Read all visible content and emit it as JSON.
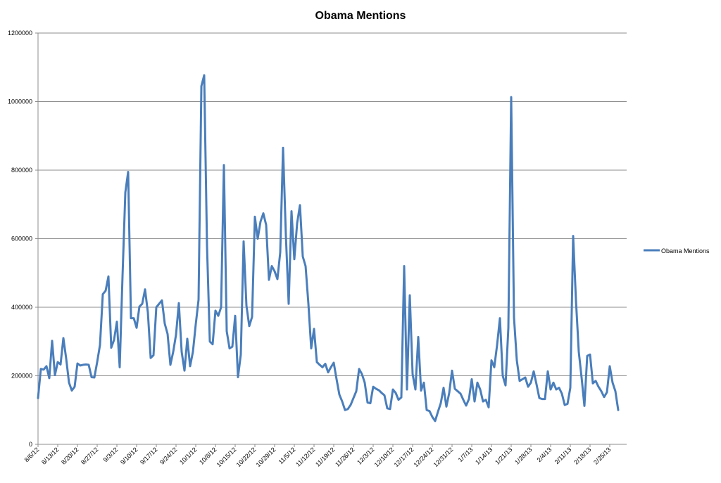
{
  "chart_data": {
    "type": "line",
    "title": "Obama Mentions",
    "xlabel": "",
    "ylabel": "",
    "ylim": [
      0,
      1200000
    ],
    "y_ticks": [
      0,
      200000,
      400000,
      600000,
      800000,
      1000000,
      1200000
    ],
    "y_tick_labels": [
      "0",
      "200000",
      "400000",
      "600000",
      "800000",
      "1000000",
      "1200000"
    ],
    "x_range": [
      "2012-08-06",
      "2013-03-03"
    ],
    "x_tick_dates": [
      "2012-08-06",
      "2012-08-13",
      "2012-08-20",
      "2012-08-27",
      "2012-09-03",
      "2012-09-10",
      "2012-09-17",
      "2012-09-24",
      "2012-10-01",
      "2012-10-08",
      "2012-10-15",
      "2012-10-22",
      "2012-10-29",
      "2012-11-05",
      "2012-11-12",
      "2012-11-19",
      "2012-11-26",
      "2012-12-03",
      "2012-12-10",
      "2012-12-17",
      "2012-12-24",
      "2012-12-31",
      "2013-01-07",
      "2013-01-14",
      "2013-01-21",
      "2013-01-28",
      "2013-02-04",
      "2013-02-11",
      "2013-02-18",
      "2013-02-25"
    ],
    "x_tick_labels": [
      "8/6/12",
      "8/13/12",
      "8/20/12",
      "8/27/12",
      "9/3/12",
      "9/10/12",
      "9/17/12",
      "9/24/12",
      "10/1/12",
      "10/8/12",
      "10/15/12",
      "10/22/12",
      "10/29/12",
      "11/5/12",
      "11/12/12",
      "11/19/12",
      "11/26/12",
      "12/3/12",
      "12/10/12",
      "12/17/12",
      "12/24/12",
      "12/31/12",
      "1/7/13",
      "1/14/13",
      "1/21/13",
      "1/28/13",
      "2/4/13",
      "2/11/13",
      "2/18/13",
      "2/25/13"
    ],
    "grid": "horizontal",
    "legend": "right",
    "series": [
      {
        "name": "Obama Mentions",
        "color": "#4a7ebb",
        "points": [
          [
            "2012-08-06",
            135000
          ],
          [
            "2012-08-07",
            220000
          ],
          [
            "2012-08-08",
            218000
          ],
          [
            "2012-08-09",
            228000
          ],
          [
            "2012-08-10",
            193000
          ],
          [
            "2012-08-11",
            302000
          ],
          [
            "2012-08-12",
            202000
          ],
          [
            "2012-08-13",
            240000
          ],
          [
            "2012-08-14",
            233000
          ],
          [
            "2012-08-15",
            310000
          ],
          [
            "2012-08-16",
            250000
          ],
          [
            "2012-08-17",
            180000
          ],
          [
            "2012-08-18",
            157000
          ],
          [
            "2012-08-19",
            168000
          ],
          [
            "2012-08-20",
            236000
          ],
          [
            "2012-08-21",
            230000
          ],
          [
            "2012-08-22",
            232000
          ],
          [
            "2012-08-23",
            233000
          ],
          [
            "2012-08-24",
            232000
          ],
          [
            "2012-08-25",
            196000
          ],
          [
            "2012-08-26",
            195000
          ],
          [
            "2012-08-27",
            240000
          ],
          [
            "2012-08-28",
            290000
          ],
          [
            "2012-08-29",
            438000
          ],
          [
            "2012-08-30",
            448000
          ],
          [
            "2012-08-31",
            490000
          ],
          [
            "2012-09-01",
            282000
          ],
          [
            "2012-09-02",
            305000
          ],
          [
            "2012-09-03",
            358000
          ],
          [
            "2012-09-04",
            225000
          ],
          [
            "2012-09-05",
            490000
          ],
          [
            "2012-09-06",
            735000
          ],
          [
            "2012-09-07",
            795000
          ],
          [
            "2012-09-08",
            368000
          ],
          [
            "2012-09-09",
            368000
          ],
          [
            "2012-09-10",
            340000
          ],
          [
            "2012-09-11",
            402000
          ],
          [
            "2012-09-12",
            410000
          ],
          [
            "2012-09-13",
            452000
          ],
          [
            "2012-09-14",
            385000
          ],
          [
            "2012-09-15",
            252000
          ],
          [
            "2012-09-16",
            260000
          ],
          [
            "2012-09-17",
            400000
          ],
          [
            "2012-09-18",
            410000
          ],
          [
            "2012-09-19",
            420000
          ],
          [
            "2012-09-20",
            352000
          ],
          [
            "2012-09-21",
            322000
          ],
          [
            "2012-09-22",
            232000
          ],
          [
            "2012-09-23",
            270000
          ],
          [
            "2012-09-24",
            320000
          ],
          [
            "2012-09-25",
            412000
          ],
          [
            "2012-09-26",
            270000
          ],
          [
            "2012-09-27",
            215000
          ],
          [
            "2012-09-28",
            308000
          ],
          [
            "2012-09-29",
            228000
          ],
          [
            "2012-09-30",
            270000
          ],
          [
            "2012-10-01",
            350000
          ],
          [
            "2012-10-02",
            422000
          ],
          [
            "2012-10-03",
            1045000
          ],
          [
            "2012-10-04",
            1077000
          ],
          [
            "2012-10-05",
            580000
          ],
          [
            "2012-10-06",
            300000
          ],
          [
            "2012-10-07",
            292000
          ],
          [
            "2012-10-08",
            390000
          ],
          [
            "2012-10-09",
            375000
          ],
          [
            "2012-10-10",
            400000
          ],
          [
            "2012-10-11",
            815000
          ],
          [
            "2012-10-12",
            330000
          ],
          [
            "2012-10-13",
            280000
          ],
          [
            "2012-10-14",
            285000
          ],
          [
            "2012-10-15",
            375000
          ],
          [
            "2012-10-16",
            196000
          ],
          [
            "2012-10-17",
            262000
          ],
          [
            "2012-10-18",
            592000
          ],
          [
            "2012-10-19",
            405000
          ],
          [
            "2012-10-20",
            345000
          ],
          [
            "2012-10-21",
            372000
          ],
          [
            "2012-10-22",
            664000
          ],
          [
            "2012-10-23",
            600000
          ],
          [
            "2012-10-24",
            650000
          ],
          [
            "2012-10-25",
            674000
          ],
          [
            "2012-10-26",
            640000
          ],
          [
            "2012-10-27",
            480000
          ],
          [
            "2012-10-28",
            520000
          ],
          [
            "2012-10-29",
            505000
          ],
          [
            "2012-10-30",
            482000
          ],
          [
            "2012-10-31",
            560000
          ],
          [
            "2012-11-01",
            865000
          ],
          [
            "2012-11-02",
            610000
          ],
          [
            "2012-11-03",
            410000
          ],
          [
            "2012-11-04",
            680000
          ],
          [
            "2012-11-05",
            540000
          ],
          [
            "2012-11-06",
            645000
          ],
          [
            "2012-11-07",
            698000
          ],
          [
            "2012-11-08",
            548000
          ],
          [
            "2012-11-09",
            520000
          ],
          [
            "2012-11-10",
            410000
          ],
          [
            "2012-11-11",
            280000
          ],
          [
            "2012-11-12",
            337000
          ],
          [
            "2012-11-13",
            240000
          ],
          [
            "2012-11-14",
            232000
          ],
          [
            "2012-11-15",
            225000
          ],
          [
            "2012-11-16",
            235000
          ],
          [
            "2012-11-17",
            210000
          ],
          [
            "2012-11-18",
            225000
          ],
          [
            "2012-11-19",
            238000
          ],
          [
            "2012-11-20",
            190000
          ],
          [
            "2012-11-21",
            145000
          ],
          [
            "2012-11-22",
            125000
          ],
          [
            "2012-11-23",
            100000
          ],
          [
            "2012-11-24",
            103000
          ],
          [
            "2012-11-25",
            115000
          ],
          [
            "2012-11-26",
            135000
          ],
          [
            "2012-11-27",
            155000
          ],
          [
            "2012-11-28",
            220000
          ],
          [
            "2012-11-29",
            205000
          ],
          [
            "2012-11-30",
            180000
          ],
          [
            "2012-12-01",
            122000
          ],
          [
            "2012-12-02",
            120000
          ],
          [
            "2012-12-03",
            168000
          ],
          [
            "2012-12-04",
            162000
          ],
          [
            "2012-12-05",
            158000
          ],
          [
            "2012-12-06",
            150000
          ],
          [
            "2012-12-07",
            143000
          ],
          [
            "2012-12-08",
            105000
          ],
          [
            "2012-12-09",
            103000
          ],
          [
            "2012-12-10",
            160000
          ],
          [
            "2012-12-11",
            150000
          ],
          [
            "2012-12-12",
            130000
          ],
          [
            "2012-12-13",
            137000
          ],
          [
            "2012-12-14",
            520000
          ],
          [
            "2012-12-15",
            160000
          ],
          [
            "2012-12-16",
            435000
          ],
          [
            "2012-12-17",
            205000
          ],
          [
            "2012-12-18",
            160000
          ],
          [
            "2012-12-19",
            313000
          ],
          [
            "2012-12-20",
            157000
          ],
          [
            "2012-12-21",
            180000
          ],
          [
            "2012-12-22",
            100000
          ],
          [
            "2012-12-23",
            97000
          ],
          [
            "2012-12-24",
            80000
          ],
          [
            "2012-12-25",
            68000
          ],
          [
            "2012-12-26",
            95000
          ],
          [
            "2012-12-27",
            120000
          ],
          [
            "2012-12-28",
            165000
          ],
          [
            "2012-12-29",
            110000
          ],
          [
            "2012-12-30",
            150000
          ],
          [
            "2012-12-31",
            215000
          ],
          [
            "2013-01-01",
            162000
          ],
          [
            "2013-01-02",
            155000
          ],
          [
            "2013-01-03",
            148000
          ],
          [
            "2013-01-04",
            130000
          ],
          [
            "2013-01-05",
            113000
          ],
          [
            "2013-01-06",
            132000
          ],
          [
            "2013-01-07",
            190000
          ],
          [
            "2013-01-08",
            125000
          ],
          [
            "2013-01-09",
            180000
          ],
          [
            "2013-01-10",
            160000
          ],
          [
            "2013-01-11",
            125000
          ],
          [
            "2013-01-12",
            130000
          ],
          [
            "2013-01-13",
            108000
          ],
          [
            "2013-01-14",
            245000
          ],
          [
            "2013-01-15",
            225000
          ],
          [
            "2013-01-16",
            290000
          ],
          [
            "2013-01-17",
            368000
          ],
          [
            "2013-01-18",
            200000
          ],
          [
            "2013-01-19",
            172000
          ],
          [
            "2013-01-20",
            340000
          ],
          [
            "2013-01-21",
            1013000
          ],
          [
            "2013-01-22",
            370000
          ],
          [
            "2013-01-23",
            245000
          ],
          [
            "2013-01-24",
            185000
          ],
          [
            "2013-01-25",
            190000
          ],
          [
            "2013-01-26",
            195000
          ],
          [
            "2013-01-27",
            168000
          ],
          [
            "2013-01-28",
            180000
          ],
          [
            "2013-01-29",
            213000
          ],
          [
            "2013-01-30",
            175000
          ],
          [
            "2013-01-31",
            135000
          ],
          [
            "2013-02-01",
            132000
          ],
          [
            "2013-02-02",
            132000
          ],
          [
            "2013-02-03",
            213000
          ],
          [
            "2013-02-04",
            160000
          ],
          [
            "2013-02-05",
            180000
          ],
          [
            "2013-02-06",
            160000
          ],
          [
            "2013-02-07",
            165000
          ],
          [
            "2013-02-08",
            148000
          ],
          [
            "2013-02-09",
            115000
          ],
          [
            "2013-02-10",
            118000
          ],
          [
            "2013-02-11",
            165000
          ],
          [
            "2013-02-12",
            608000
          ],
          [
            "2013-02-13",
            420000
          ],
          [
            "2013-02-14",
            270000
          ],
          [
            "2013-02-15",
            195000
          ],
          [
            "2013-02-16",
            112000
          ],
          [
            "2013-02-17",
            258000
          ],
          [
            "2013-02-18",
            262000
          ],
          [
            "2013-02-19",
            178000
          ],
          [
            "2013-02-20",
            185000
          ],
          [
            "2013-02-21",
            168000
          ],
          [
            "2013-02-22",
            155000
          ],
          [
            "2013-02-23",
            138000
          ],
          [
            "2013-02-24",
            152000
          ],
          [
            "2013-02-25",
            228000
          ],
          [
            "2013-02-26",
            180000
          ],
          [
            "2013-02-27",
            155000
          ],
          [
            "2013-02-28",
            100000
          ]
        ]
      }
    ]
  }
}
